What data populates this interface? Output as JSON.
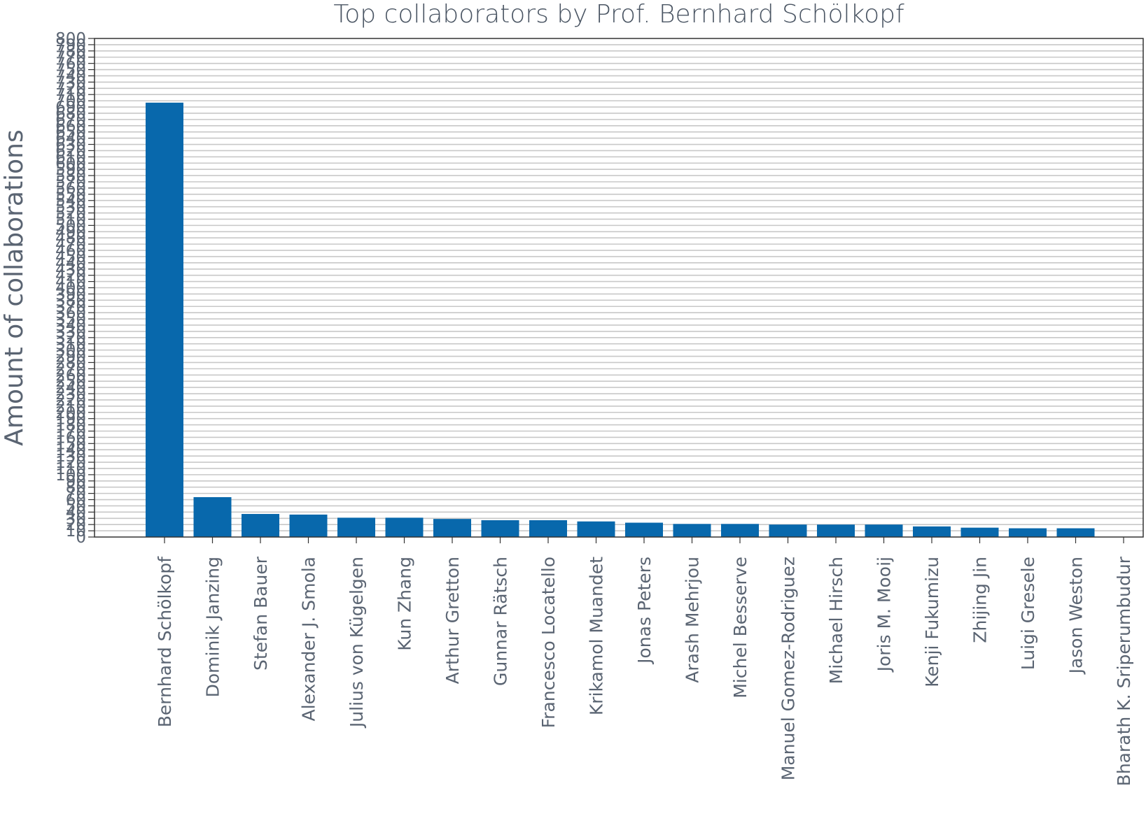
{
  "chart_data": {
    "type": "bar",
    "title": "Top collaborators by Prof. Bernhard Schölkopf",
    "xlabel": "",
    "ylabel": "Amount of collaborations",
    "ylim": [
      0,
      800
    ],
    "ytick_step": 10,
    "grid": "horizontal",
    "colors": {
      "bar": "#0868ac",
      "grid": "#c8c8c8",
      "axis": "#333333",
      "text": "#5a6472"
    },
    "categories": [
      "Bernhard Schölkopf",
      "Dominik Janzing",
      "Stefan Bauer",
      "Alexander J. Smola",
      "Julius von Kügelgen",
      "Kun Zhang",
      "Arthur Gretton",
      "Gunnar Rätsch",
      "Francesco Locatello",
      "Krikamol Muandet",
      "Jonas Peters",
      "Arash Mehrjou",
      "Michel Besserve",
      "Manuel Gomez-Rodriguez",
      "Michael Hirsch",
      "Joris M. Mooij",
      "Kenji Fukumizu",
      "Zhijing Jin",
      "Luigi Gresele",
      "Jason Weston",
      "Bharath K. Sriperumbudur"
    ],
    "values": [
      697,
      64,
      37,
      36,
      31,
      31,
      29,
      27,
      27,
      25,
      23,
      21,
      21,
      20,
      20,
      20,
      17,
      15,
      14,
      14,
      0
    ]
  }
}
